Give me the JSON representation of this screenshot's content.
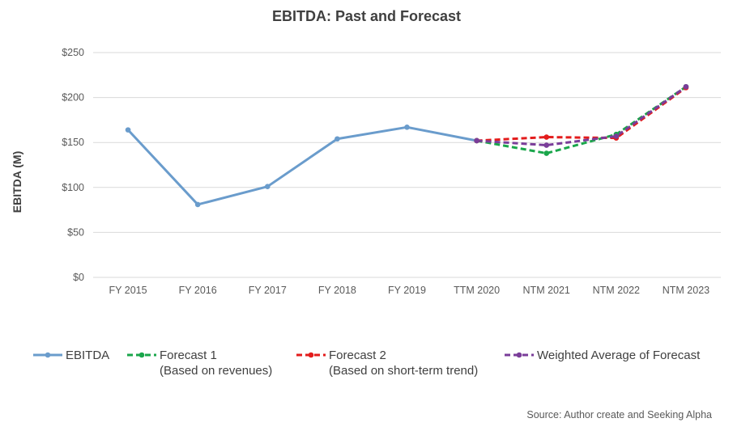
{
  "chart_data": {
    "type": "line",
    "title": "EBITDA: Past and Forecast",
    "ylabel": "EBITDA (M)",
    "xlabel": "",
    "categories": [
      "FY 2015",
      "FY 2016",
      "FY 2017",
      "FY 2018",
      "FY 2019",
      "TTM 2020",
      "NTM 2021",
      "NTM 2022",
      "NTM 2023"
    ],
    "ylim": [
      0,
      250
    ],
    "yticks": [
      0,
      50,
      100,
      150,
      200,
      250
    ],
    "ytick_labels": [
      "$0",
      "$50",
      "$100",
      "$150",
      "$200",
      "$250"
    ],
    "grid": true,
    "legend_position": "bottom",
    "series": [
      {
        "name": "EBITDA",
        "style": "solid",
        "color": "#6a9ccc",
        "values": [
          164,
          81,
          101,
          154,
          167,
          152,
          null,
          null,
          null
        ]
      },
      {
        "name": "Forecast 1",
        "name_line2": "(Based on revenues)",
        "style": "dashed",
        "color": "#1aa64b",
        "values": [
          null,
          null,
          null,
          null,
          null,
          152,
          138,
          159,
          212
        ]
      },
      {
        "name": "Forecast 2",
        "name_line2": "(Based on short-term trend)",
        "style": "dashed",
        "color": "#e31c1c",
        "values": [
          null,
          null,
          null,
          null,
          null,
          152,
          156,
          155,
          211
        ]
      },
      {
        "name": "Weighted Average of Forecast",
        "style": "dashed",
        "color": "#7a3d99",
        "values": [
          null,
          null,
          null,
          null,
          null,
          152,
          147,
          157,
          212
        ]
      }
    ]
  },
  "source": "Source: Author create and Seeking Alpha"
}
